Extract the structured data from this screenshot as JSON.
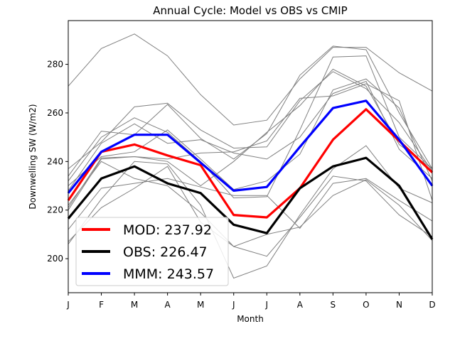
{
  "chart_data": {
    "type": "line",
    "title": "Annual Cycle: Model vs OBS vs CMIP",
    "xlabel": "Month",
    "ylabel": "Downwelling SW (W/m2)",
    "categories": [
      "J",
      "F",
      "M",
      "A",
      "M",
      "J",
      "J",
      "A",
      "S",
      "O",
      "N",
      "D"
    ],
    "ylim": [
      186,
      298
    ],
    "yticks": [
      200,
      220,
      240,
      260,
      280
    ],
    "grid": false,
    "legend_position": "lower-left",
    "series": [
      {
        "name": "MOD",
        "legend_label": "MOD: 237.92",
        "color": "#ff0000",
        "values": [
          224,
          244,
          247,
          242.5,
          238.5,
          218,
          217,
          229,
          249,
          261.5,
          248.5,
          235.5
        ]
      },
      {
        "name": "OBS",
        "legend_label": "OBS: 226.47",
        "color": "#000000",
        "values": [
          216.5,
          233,
          238,
          231,
          227,
          214,
          210.5,
          229,
          238,
          241.5,
          230,
          208
        ]
      },
      {
        "name": "MMM",
        "legend_label": "MMM: 243.57",
        "color": "#0000ff",
        "values": [
          227,
          244,
          251,
          251,
          239.5,
          228,
          229.5,
          246,
          262,
          265,
          249,
          230
        ]
      }
    ],
    "cmip_models": [
      {
        "values": [
          271,
          286.5,
          292.5,
          283.5,
          267.5,
          255,
          257,
          274,
          287,
          287,
          276.5,
          269
        ]
      },
      {
        "values": [
          237,
          248,
          262.5,
          264,
          253,
          245.5,
          246,
          265,
          277,
          270,
          256,
          236
        ]
      },
      {
        "values": [
          234,
          252.5,
          251,
          263.5,
          249.5,
          241,
          251.5,
          275.5,
          287.5,
          286,
          260,
          237
        ]
      },
      {
        "values": [
          232,
          250,
          258,
          252,
          240,
          225,
          225.5,
          253,
          283,
          283.5,
          250,
          237
        ]
      },
      {
        "values": [
          230,
          242,
          244,
          253,
          241,
          228.5,
          232,
          243,
          269.5,
          274,
          262,
          232
        ]
      },
      {
        "values": [
          228,
          247.5,
          255.5,
          247.5,
          249,
          243.5,
          241,
          250,
          268,
          273,
          245,
          233
        ]
      },
      {
        "values": [
          221,
          241.5,
          242,
          241,
          243.5,
          244,
          248.5,
          266,
          267,
          272,
          265,
          224
        ]
      },
      {
        "values": [
          220,
          241,
          242,
          240,
          230,
          240,
          252,
          263,
          278,
          271,
          247,
          237
        ]
      },
      {
        "values": [
          212,
          229,
          231,
          233,
          229.5,
          226,
          226,
          212.5,
          231,
          233,
          224,
          215.5
        ]
      },
      {
        "values": [
          207,
          221,
          229,
          238,
          215,
          205,
          210,
          213,
          226,
          232.5,
          222,
          207.5
        ]
      },
      {
        "values": [
          206,
          224.5,
          240,
          239,
          222,
          192,
          197,
          218,
          237,
          246.5,
          229,
          223
        ]
      },
      {
        "values": [
          222,
          240,
          233,
          230,
          219,
          205,
          201,
          217,
          234,
          232,
          218,
          209
        ]
      }
    ]
  }
}
